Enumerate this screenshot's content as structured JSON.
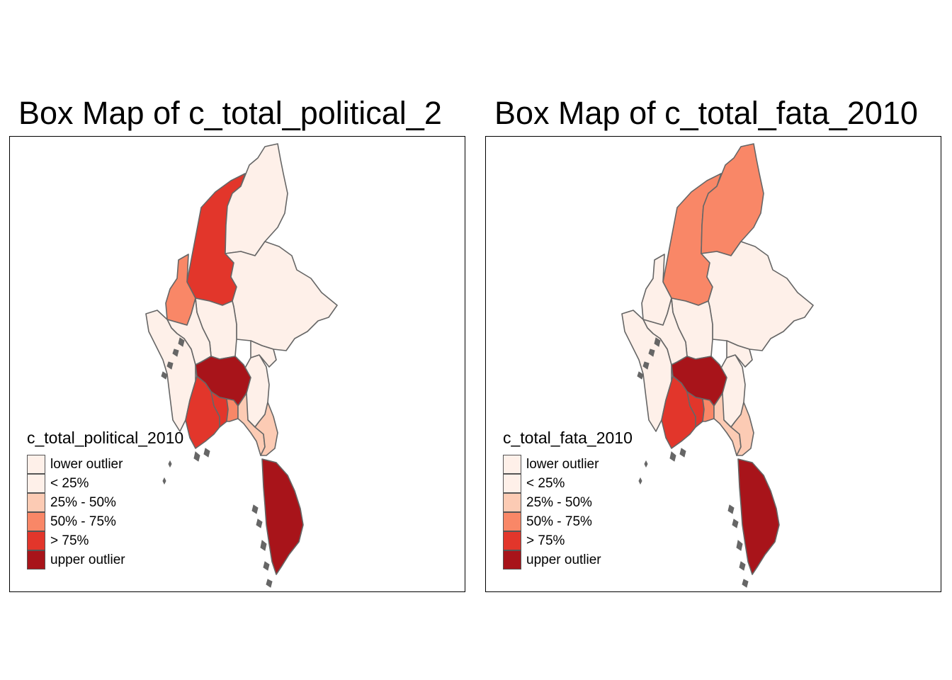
{
  "panels": [
    {
      "title": "Box Map of c_total_political_2",
      "legend_title": "c_total_political_2010",
      "region_classes": [
        "5",
        "4",
        "2",
        "2",
        "2",
        "2",
        "2",
        "2",
        "2",
        "6",
        "5",
        "5",
        "4",
        "3",
        "3",
        "6"
      ]
    },
    {
      "title": "Box Map of c_total_fata_2010",
      "legend_title": "c_total_fata_2010",
      "region_classes": [
        "4",
        "2",
        "4",
        "2",
        "2",
        "2",
        "2",
        "2",
        "2",
        "6",
        "5",
        "5",
        "4",
        "3",
        "3",
        "6"
      ]
    }
  ],
  "legend": [
    {
      "label": "lower outlier",
      "color": "#FEF0E9"
    },
    {
      "label": "< 25%",
      "color": "#FEF0E9"
    },
    {
      "label": "25% - 50%",
      "color": "#FCCBB4"
    },
    {
      "label": "50% - 75%",
      "color": "#F98767"
    },
    {
      "label": "> 75%",
      "color": "#E2362B"
    },
    {
      "label": "upper outlier",
      "color": "#A8141A"
    }
  ],
  "colors": {
    "border": "#666666",
    "frame": "#000000"
  }
}
